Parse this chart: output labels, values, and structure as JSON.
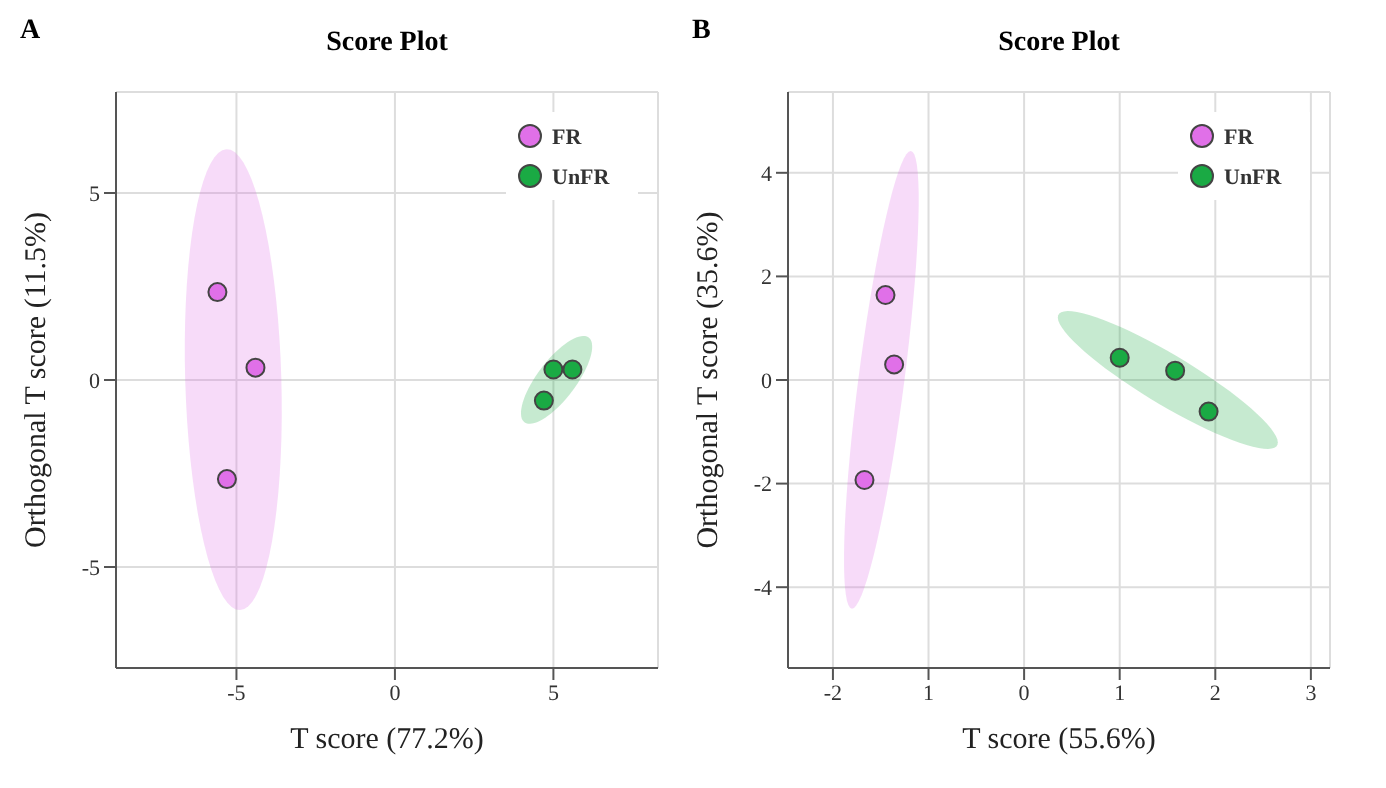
{
  "chart_data": [
    {
      "type": "scatter",
      "title": "Score Plot",
      "xlabel": "T score (77.2%)",
      "ylabel": "Orthogonal T score (11.5%)",
      "annotations": [
        "A"
      ],
      "xlim": [
        -8.8,
        8.3
      ],
      "ylim": [
        -7.7,
        7.7
      ],
      "xticks": [
        -5,
        0,
        5
      ],
      "yticks": [
        -5,
        0,
        5
      ],
      "grid": true,
      "legend": "top right",
      "marker": "circle",
      "series": [
        {
          "name": "FR",
          "color": "#e070e8",
          "x": [
            -5.6,
            -4.4,
            -5.3
          ],
          "values": [
            2.35,
            0.33,
            -2.65
          ]
        },
        {
          "name": "UnFR",
          "color": "#1aaa44",
          "x": [
            5.0,
            5.6,
            4.7
          ],
          "values": [
            0.28,
            0.28,
            -0.55
          ]
        }
      ]
    },
    {
      "type": "scatter",
      "title": "Score Plot",
      "xlabel": "T score (55.6%)",
      "ylabel": "Orthogonal T score (35.6%)",
      "annotations": [
        "B"
      ],
      "xlim": [
        -2.47,
        3.2
      ],
      "ylim": [
        -5.56,
        5.56
      ],
      "xticks": [
        -2,
        {
          "value": -1,
          "label": "1"
        },
        0,
        1,
        2,
        3
      ],
      "yticks": [
        -4,
        -2,
        0,
        2,
        4
      ],
      "grid": true,
      "legend": "top right",
      "marker": "circle",
      "series": [
        {
          "name": "FR",
          "color": "#e070e8",
          "x": [
            -1.45,
            -1.36,
            -1.67
          ],
          "values": [
            1.64,
            0.3,
            -1.93
          ]
        },
        {
          "name": "UnFR",
          "color": "#1aaa44",
          "x": [
            1.0,
            1.58,
            1.93
          ],
          "values": [
            0.43,
            0.18,
            -0.61
          ]
        }
      ]
    }
  ]
}
